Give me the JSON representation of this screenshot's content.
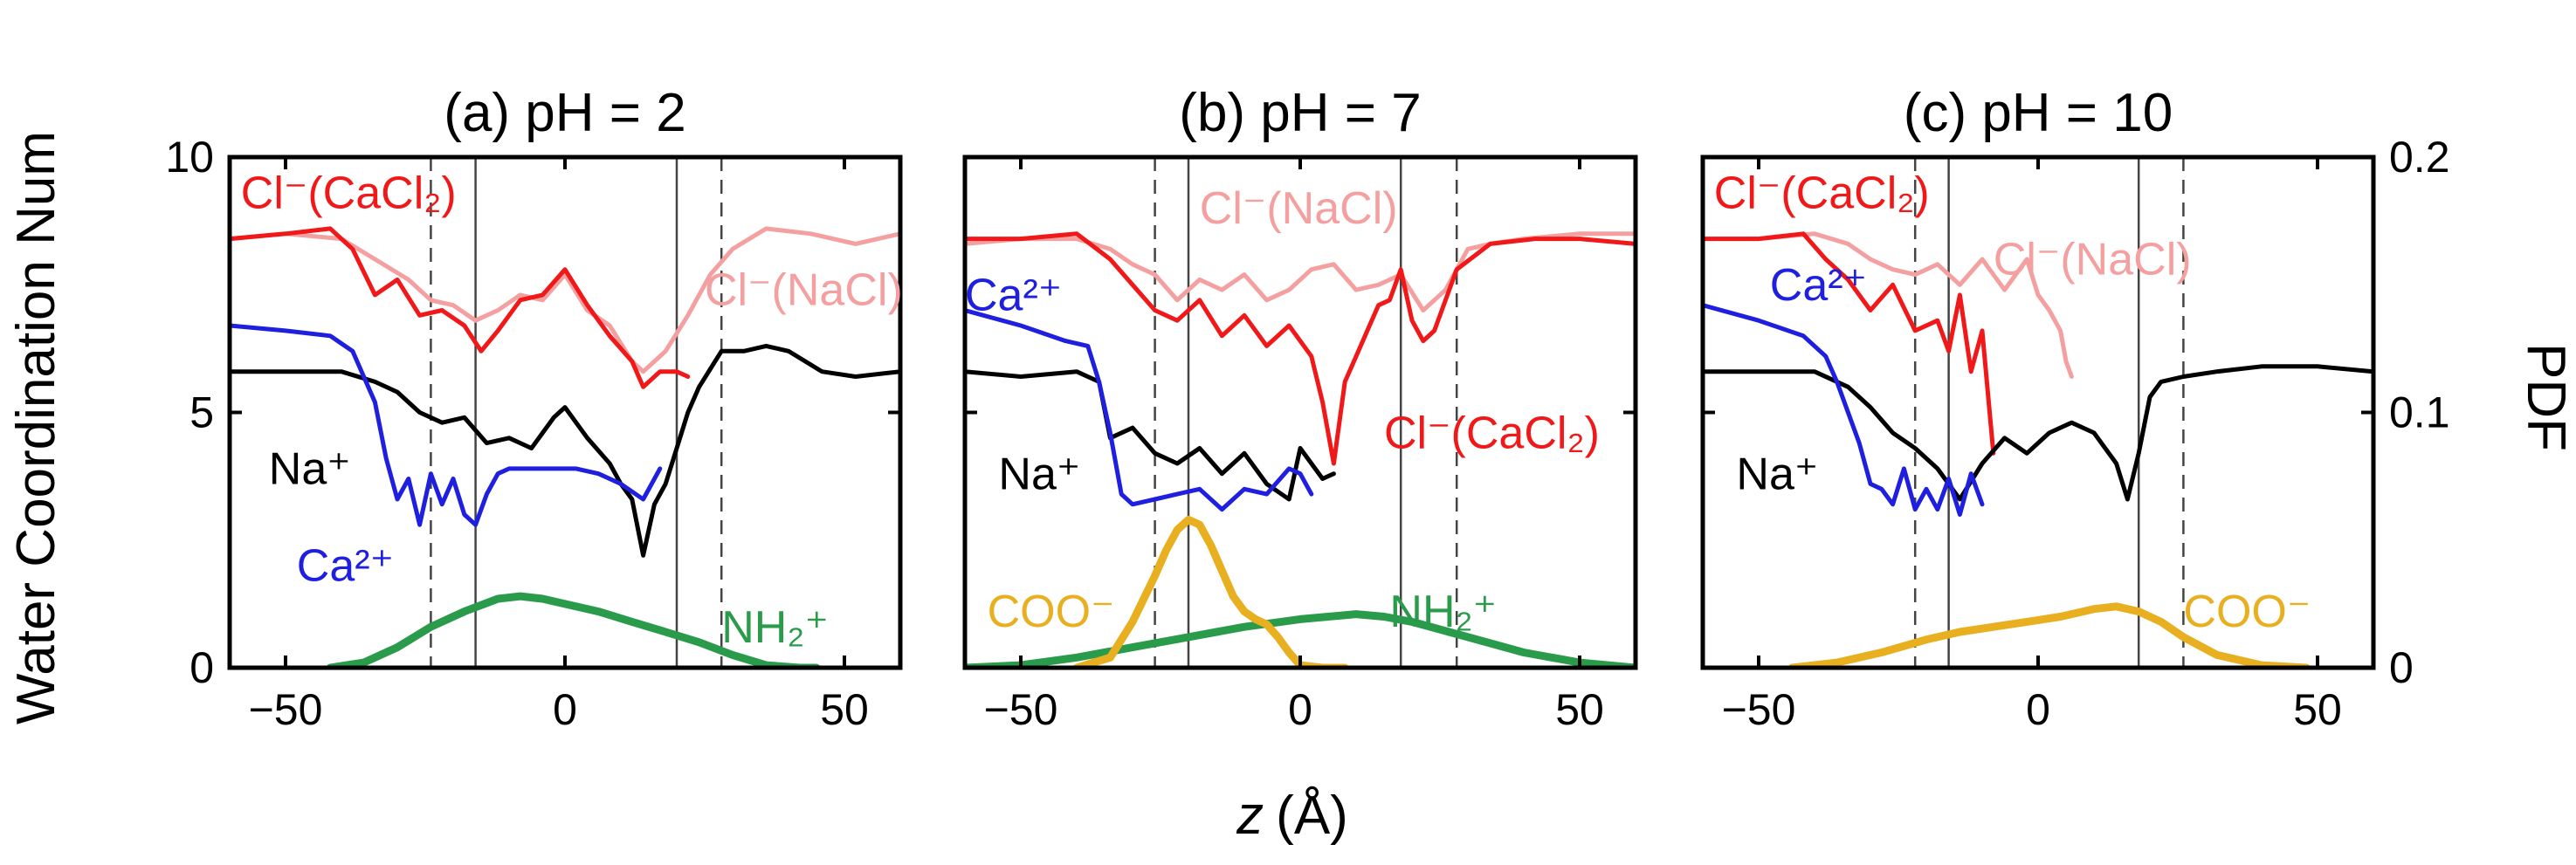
{
  "figure": {
    "ylabel_left": "Water Coordination Num",
    "ylabel_right": "PDF",
    "xlabel_italic": "z",
    "xlabel_unit": "(Å)"
  },
  "colors": {
    "na": "#000000",
    "ca": "#1f1fe0",
    "cl_cacl2": "#f01818",
    "cl_nacl": "#f4a0a0",
    "nh2": "#2a9b4a",
    "coo": "#e8b020",
    "vline": "#444444"
  },
  "chart_data": [
    {
      "type": "line",
      "title": "(a) pH = 2",
      "xlim": [
        -60,
        60
      ],
      "ylim": [
        0,
        10
      ],
      "ylim_right": [
        0,
        0.2
      ],
      "xticks": [
        "-50",
        "0",
        "50"
      ],
      "yticks": [
        "0",
        "5",
        "10"
      ],
      "yticks_right": [],
      "solid_vlines": [
        -16,
        20
      ],
      "dashed_vlines": [
        -24,
        28
      ],
      "series": [
        {
          "name": "Cl- (NaCl)",
          "color": "cl_nacl",
          "axis": "left",
          "x": [
            -60,
            -50,
            -40,
            -34,
            -28,
            -24,
            -20,
            -16,
            -12,
            -8,
            -4,
            0,
            4,
            8,
            12,
            14,
            18,
            22,
            26,
            30,
            36,
            44,
            52,
            60
          ],
          "y": [
            8.4,
            8.5,
            8.4,
            8.0,
            7.6,
            7.2,
            7.1,
            6.8,
            7.0,
            7.3,
            7.2,
            7.7,
            7.0,
            6.7,
            6.0,
            5.8,
            6.2,
            6.9,
            7.7,
            8.2,
            8.6,
            8.5,
            8.3,
            8.5
          ]
        },
        {
          "name": "Cl- (CaCl2)",
          "color": "cl_cacl2",
          "axis": "left",
          "x": [
            -60,
            -50,
            -42,
            -38,
            -34,
            -30,
            -26,
            -22,
            -18,
            -15,
            -12,
            -8,
            -4,
            0,
            4,
            8,
            12,
            14,
            17,
            20,
            22
          ],
          "y": [
            8.4,
            8.5,
            8.6,
            8.2,
            7.3,
            7.6,
            6.9,
            7.0,
            6.7,
            6.2,
            6.6,
            7.2,
            7.3,
            7.8,
            7.1,
            6.5,
            6.0,
            5.5,
            5.8,
            5.8,
            5.7
          ]
        },
        {
          "name": "Na+",
          "color": "na",
          "axis": "left",
          "x": [
            -60,
            -50,
            -40,
            -34,
            -30,
            -26,
            -22,
            -18,
            -14,
            -10,
            -6,
            -2,
            0,
            4,
            8,
            10,
            12,
            14,
            16,
            18,
            20,
            22,
            24,
            28,
            32,
            36,
            40,
            46,
            52,
            60
          ],
          "y": [
            5.8,
            5.8,
            5.8,
            5.6,
            5.4,
            5.0,
            4.8,
            4.9,
            4.4,
            4.5,
            4.3,
            4.9,
            5.1,
            4.5,
            4.0,
            3.6,
            3.3,
            2.2,
            3.2,
            3.6,
            4.3,
            5.0,
            5.5,
            6.2,
            6.2,
            6.3,
            6.2,
            5.8,
            5.7,
            5.8
          ]
        },
        {
          "name": "Ca2+",
          "color": "ca",
          "axis": "left",
          "x": [
            -60,
            -50,
            -42,
            -38,
            -36,
            -34,
            -32,
            -30,
            -28,
            -26,
            -24,
            -22,
            -20,
            -18,
            -16,
            -14,
            -12,
            -10,
            -6,
            -2,
            2,
            6,
            10,
            14,
            17
          ],
          "y": [
            6.7,
            6.6,
            6.5,
            6.2,
            5.7,
            5.2,
            4.1,
            3.3,
            3.7,
            2.8,
            3.8,
            3.2,
            3.7,
            3.0,
            2.8,
            3.4,
            3.8,
            3.9,
            3.9,
            3.9,
            3.9,
            3.8,
            3.6,
            3.3,
            3.9
          ]
        },
        {
          "name": "NH2+",
          "color": "nh2",
          "axis": "right",
          "x": [
            -42,
            -36,
            -30,
            -24,
            -18,
            -12,
            -8,
            -4,
            0,
            6,
            12,
            18,
            24,
            30,
            36,
            42,
            45
          ],
          "y": [
            0.0,
            0.002,
            0.008,
            0.016,
            0.022,
            0.027,
            0.028,
            0.027,
            0.025,
            0.022,
            0.018,
            0.014,
            0.01,
            0.005,
            0.001,
            0.0,
            0.0
          ]
        }
      ],
      "labels": [
        {
          "text": "Cl⁻(CaCl₂)",
          "color": "cl_cacl2",
          "x": -58,
          "y": 9.0
        },
        {
          "text": "Cl⁻(NaCl)",
          "color": "cl_nacl",
          "x": 25,
          "y": 7.1
        },
        {
          "text": "Na⁺",
          "color": "na",
          "x": -53,
          "y": 3.6
        },
        {
          "text": "Ca²⁺",
          "color": "ca",
          "x": -48,
          "y": 1.7
        },
        {
          "text": "NH₂⁺",
          "color": "nh2",
          "x": 28,
          "y": 0.5
        }
      ]
    },
    {
      "type": "line",
      "title": "(b) pH = 7",
      "xlim": [
        -60,
        60
      ],
      "ylim": [
        0,
        10
      ],
      "ylim_right": [
        0,
        0.2
      ],
      "xticks": [
        "-50",
        "0",
        "50"
      ],
      "yticks": [],
      "yticks_right": [],
      "solid_vlines": [
        -20,
        18
      ],
      "dashed_vlines": [
        -26,
        28
      ],
      "series": [
        {
          "name": "Cl- (NaCl)",
          "color": "cl_nacl",
          "axis": "left",
          "x": [
            -60,
            -50,
            -40,
            -34,
            -30,
            -26,
            -22,
            -18,
            -14,
            -10,
            -6,
            -2,
            2,
            6,
            10,
            14,
            18,
            22,
            26,
            30,
            34,
            40,
            50,
            60
          ],
          "y": [
            8.3,
            8.4,
            8.4,
            8.2,
            7.9,
            7.7,
            7.2,
            7.6,
            7.4,
            7.7,
            7.2,
            7.4,
            7.8,
            7.9,
            7.4,
            7.5,
            7.7,
            7.0,
            7.4,
            8.2,
            8.3,
            8.4,
            8.5,
            8.5
          ]
        },
        {
          "name": "Cl- (CaCl2)",
          "color": "cl_cacl2",
          "axis": "left",
          "x": [
            -60,
            -50,
            -40,
            -34,
            -30,
            -26,
            -22,
            -18,
            -14,
            -10,
            -6,
            -2,
            2,
            4,
            6,
            8,
            10,
            12,
            14,
            16,
            18,
            20,
            22,
            24,
            28,
            34,
            42,
            50,
            60
          ],
          "y": [
            8.4,
            8.4,
            8.5,
            8.0,
            7.5,
            7.0,
            6.8,
            7.2,
            6.5,
            6.9,
            6.3,
            6.7,
            6.1,
            5.2,
            4.0,
            5.6,
            6.1,
            6.6,
            7.1,
            7.2,
            7.8,
            6.8,
            6.4,
            6.6,
            7.8,
            8.3,
            8.4,
            8.4,
            8.3
          ]
        },
        {
          "name": "Na+",
          "color": "na",
          "axis": "left",
          "x": [
            -60,
            -50,
            -40,
            -36,
            -34,
            -30,
            -26,
            -22,
            -18,
            -14,
            -10,
            -6,
            -2,
            0,
            2,
            4,
            6
          ],
          "y": [
            5.8,
            5.7,
            5.8,
            5.6,
            4.5,
            4.7,
            4.2,
            4.0,
            4.3,
            3.8,
            4.2,
            3.6,
            3.3,
            4.3,
            4.0,
            3.7,
            3.8
          ]
        },
        {
          "name": "Ca2+",
          "color": "ca",
          "axis": "left",
          "x": [
            -60,
            -50,
            -42,
            -38,
            -36,
            -34,
            -32,
            -30,
            -26,
            -22,
            -18,
            -14,
            -10,
            -6,
            -2,
            0,
            2
          ],
          "y": [
            7.0,
            6.7,
            6.4,
            6.3,
            5.6,
            4.6,
            3.4,
            3.2,
            3.3,
            3.4,
            3.5,
            3.1,
            3.5,
            3.4,
            3.9,
            3.8,
            3.4
          ]
        },
        {
          "name": "NH2+",
          "color": "nh2",
          "axis": "right",
          "x": [
            -60,
            -50,
            -40,
            -30,
            -20,
            -10,
            0,
            5,
            10,
            15,
            20,
            30,
            40,
            50,
            60
          ],
          "y": [
            0.0,
            0.001,
            0.004,
            0.008,
            0.012,
            0.016,
            0.019,
            0.02,
            0.021,
            0.02,
            0.018,
            0.012,
            0.006,
            0.002,
            0.0
          ]
        },
        {
          "name": "COO-",
          "color": "coo",
          "axis": "right",
          "x": [
            -40,
            -34,
            -30,
            -26,
            -24,
            -22,
            -20,
            -18,
            -16,
            -14,
            -12,
            -10,
            -8,
            -6,
            -4,
            -2,
            0,
            4,
            8
          ],
          "y": [
            0.0,
            0.004,
            0.018,
            0.036,
            0.046,
            0.054,
            0.058,
            0.056,
            0.048,
            0.038,
            0.028,
            0.022,
            0.019,
            0.017,
            0.012,
            0.006,
            0.001,
            0.0,
            0.0
          ]
        }
      ],
      "labels": [
        {
          "text": "Cl⁻(NaCl)",
          "color": "cl_nacl",
          "x": -18,
          "y": 8.7
        },
        {
          "text": "Cl⁻(CaCl₂)",
          "color": "cl_cacl2",
          "x": 15,
          "y": 4.3
        },
        {
          "text": "Ca²⁺",
          "color": "ca",
          "x": -60,
          "y": 7.0
        },
        {
          "text": "Na⁺",
          "color": "na",
          "x": -54,
          "y": 3.5
        },
        {
          "text": "COO⁻",
          "color": "coo",
          "x": -56,
          "y": 0.8
        },
        {
          "text": "NH₂⁺",
          "color": "nh2",
          "x": 16,
          "y": 0.8
        }
      ]
    },
    {
      "type": "line",
      "title": "(c) pH = 10",
      "xlim": [
        -60,
        60
      ],
      "ylim": [
        0,
        10
      ],
      "ylim_right": [
        0,
        0.2
      ],
      "xticks": [
        "-50",
        "0",
        "50"
      ],
      "yticks": [],
      "yticks_right": [
        "0",
        "0.1",
        "0.2"
      ],
      "solid_vlines": [
        -16,
        18
      ],
      "dashed_vlines": [
        -22,
        26
      ],
      "series": [
        {
          "name": "Cl- (NaCl)",
          "color": "cl_nacl",
          "axis": "right_proxy_left",
          "x": [
            -60,
            -50,
            -40,
            -34,
            -30,
            -26,
            -22,
            -18,
            -14,
            -10,
            -6,
            -2,
            0,
            2,
            4,
            5,
            6
          ],
          "y": [
            8.4,
            8.4,
            8.5,
            8.3,
            8.0,
            7.8,
            7.7,
            7.9,
            7.5,
            8.0,
            7.4,
            8.0,
            7.3,
            7.0,
            6.6,
            6.0,
            5.7
          ]
        },
        {
          "name": "Cl- (CaCl2)",
          "color": "cl_cacl2",
          "axis": "left",
          "x": [
            -60,
            -50,
            -42,
            -38,
            -34,
            -30,
            -26,
            -22,
            -18,
            -16,
            -14,
            -12,
            -10,
            -8
          ],
          "y": [
            8.4,
            8.4,
            8.5,
            8.0,
            7.6,
            7.0,
            7.5,
            6.6,
            6.8,
            6.2,
            7.3,
            5.8,
            6.6,
            4.2
          ]
        },
        {
          "name": "Na+",
          "color": "na",
          "axis": "left",
          "x": [
            -60,
            -50,
            -40,
            -34,
            -30,
            -26,
            -22,
            -18,
            -14,
            -10,
            -6,
            -2,
            2,
            6,
            10,
            14,
            16,
            18,
            20,
            22,
            26,
            32,
            40,
            50,
            60
          ],
          "y": [
            5.8,
            5.8,
            5.8,
            5.5,
            5.1,
            4.6,
            4.3,
            3.9,
            3.3,
            4.0,
            4.5,
            4.2,
            4.6,
            4.8,
            4.6,
            4.0,
            3.3,
            4.2,
            5.3,
            5.6,
            5.7,
            5.8,
            5.9,
            5.9,
            5.8
          ]
        },
        {
          "name": "Ca2+",
          "color": "ca",
          "axis": "left",
          "x": [
            -60,
            -50,
            -42,
            -38,
            -36,
            -34,
            -32,
            -30,
            -28,
            -26,
            -24,
            -22,
            -20,
            -18,
            -16,
            -14,
            -12,
            -10
          ],
          "y": [
            7.1,
            6.8,
            6.5,
            6.1,
            5.6,
            5.0,
            4.4,
            3.6,
            3.5,
            3.2,
            3.9,
            3.1,
            3.5,
            3.1,
            3.7,
            3.0,
            3.8,
            3.2
          ]
        },
        {
          "name": "COO-",
          "color": "coo",
          "axis": "right",
          "x": [
            -44,
            -36,
            -28,
            -20,
            -14,
            -8,
            -2,
            4,
            10,
            14,
            18,
            22,
            26,
            32,
            40,
            48
          ],
          "y": [
            0.0,
            0.002,
            0.006,
            0.011,
            0.014,
            0.016,
            0.018,
            0.02,
            0.023,
            0.024,
            0.022,
            0.018,
            0.012,
            0.005,
            0.001,
            0.0
          ]
        }
      ],
      "labels": [
        {
          "text": "Cl⁻(CaCl₂)",
          "color": "cl_cacl2",
          "x": -58,
          "y": 9.0
        },
        {
          "text": "Cl⁻(NaCl)",
          "color": "cl_nacl",
          "x": -8,
          "y": 7.7
        },
        {
          "text": "Ca²⁺",
          "color": "ca",
          "x": -48,
          "y": 7.2
        },
        {
          "text": "Na⁺",
          "color": "na",
          "x": -54,
          "y": 3.5
        },
        {
          "text": "COO⁻",
          "color": "coo",
          "x": 26,
          "y": 0.8
        }
      ]
    }
  ]
}
